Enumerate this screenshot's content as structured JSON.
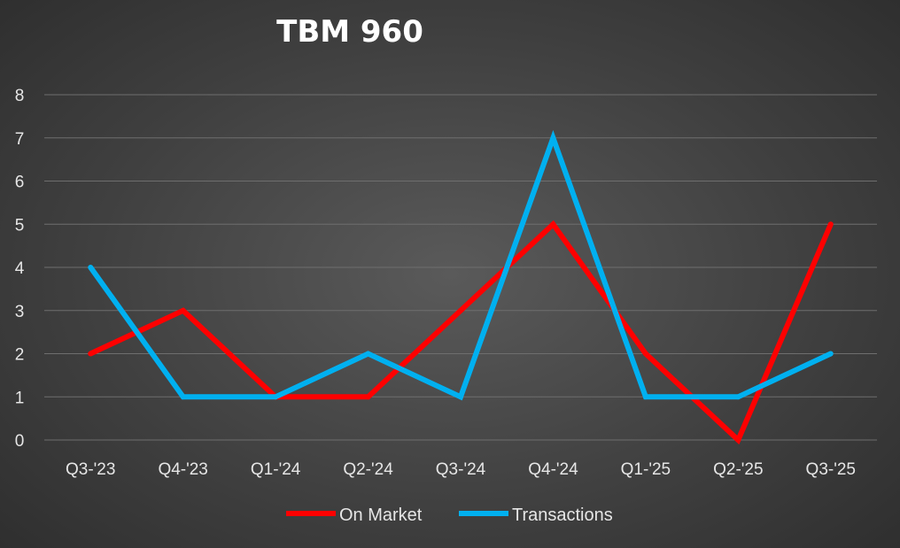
{
  "chart_data": {
    "type": "line",
    "title": "TBM 960",
    "xlabel": "",
    "ylabel": "",
    "categories": [
      "Q3-'23",
      "Q4-'23",
      "Q1-'24",
      "Q2-'24",
      "Q3-'24",
      "Q4-'24",
      "Q1-'25",
      "Q2-'25",
      "Q3-'25"
    ],
    "series": [
      {
        "name": "On Market",
        "color": "#ff0000",
        "values": [
          2,
          3,
          1,
          1,
          3,
          5,
          2,
          0,
          5
        ]
      },
      {
        "name": "Transactions",
        "color": "#00b0f0",
        "values": [
          4,
          1,
          1,
          2,
          1,
          7,
          1,
          1,
          2
        ]
      }
    ],
    "ylim": [
      0,
      8
    ],
    "yticks": [
      "0",
      "1",
      "2",
      "3",
      "4",
      "5",
      "6",
      "7",
      "8"
    ],
    "grid": true,
    "legend_position": "bottom"
  }
}
